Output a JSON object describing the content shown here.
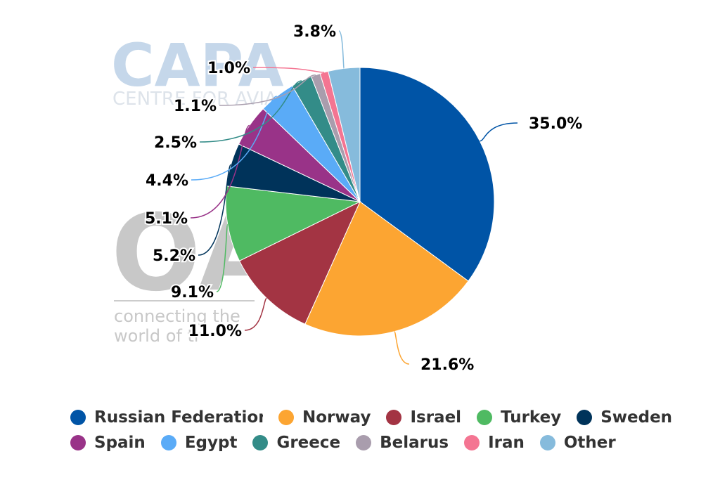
{
  "watermark": {
    "capa": "CAPA",
    "capa_sub": "CENTRE FOR AVIA",
    "oag": "OAG",
    "oag_line1": "connecting the",
    "oag_line2": "world of tr"
  },
  "chart_data": {
    "type": "pie",
    "title": "",
    "slices": [
      {
        "name": "Russian Federation",
        "value": 35.0,
        "label": "35.0%",
        "color": "#0054a6"
      },
      {
        "name": "Norway",
        "value": 21.6,
        "label": "21.6%",
        "color": "#fca532"
      },
      {
        "name": "Israel",
        "value": 11.0,
        "label": "11.0%",
        "color": "#a33443"
      },
      {
        "name": "Turkey",
        "value": 9.1,
        "label": "9.1%",
        "color": "#4fba62"
      },
      {
        "name": "Sweden",
        "value": 5.2,
        "label": "5.2%",
        "color": "#00335a"
      },
      {
        "name": "Spain",
        "value": 5.1,
        "label": "5.1%",
        "color": "#993388"
      },
      {
        "name": "Egypt",
        "value": 4.4,
        "label": "4.4%",
        "color": "#5aabf7"
      },
      {
        "name": "Greece",
        "value": 2.5,
        "label": "2.5%",
        "color": "#338c88"
      },
      {
        "name": "Belarus",
        "value": 1.1,
        "label": "1.1%",
        "color": "#a99dad"
      },
      {
        "name": "Iran",
        "value": 1.0,
        "label": "1.0%",
        "color": "#f47592"
      },
      {
        "name": "Other",
        "value": 3.8,
        "label": "3.8%",
        "color": "#86bbdc"
      }
    ],
    "legend_position": "bottom"
  }
}
